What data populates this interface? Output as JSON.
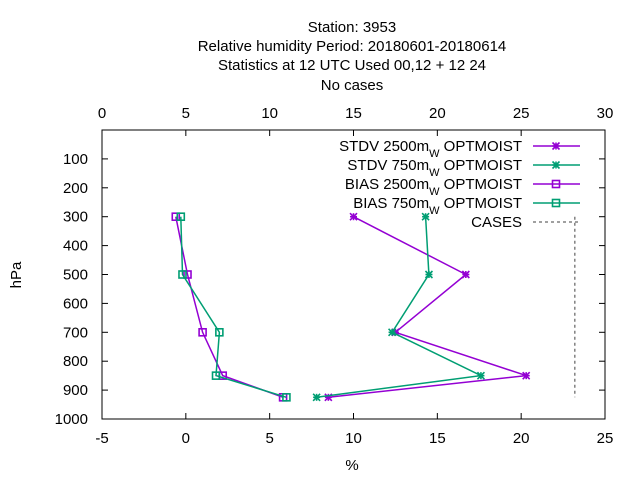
{
  "chart_data": {
    "type": "line",
    "title_lines": [
      "Station:     3953",
      "Relative humidity  Period: 20180601-20180614",
      "Statistics at 12 UTC  Used  00,12  + 12 24",
      "No cases"
    ],
    "xlabel": "%",
    "ylabel": "hPa",
    "xlim": [
      -5,
      25
    ],
    "x2lim": [
      0,
      30
    ],
    "ylim": [
      1000,
      0
    ],
    "x_ticks": [
      -5,
      0,
      5,
      10,
      15,
      20,
      25
    ],
    "x2_ticks": [
      0,
      5,
      10,
      15,
      20,
      25,
      30
    ],
    "y_ticks": [
      100,
      200,
      300,
      400,
      500,
      600,
      700,
      800,
      900,
      1000
    ],
    "legend_position": "top-right",
    "series": [
      {
        "name": "STDV 2500m",
        "name_sub": "W",
        "name_suffix": " OPTMOIST",
        "color": "#9400d3",
        "marker": "x",
        "x": [
          10,
          16.7,
          12.5,
          20.3,
          8.5
        ],
        "y": [
          300,
          500,
          700,
          850,
          925
        ]
      },
      {
        "name": "STDV 750m",
        "name_sub": "W",
        "name_suffix": " OPTMOIST",
        "color": "#009e73",
        "marker": "x",
        "x": [
          14.3,
          14.5,
          12.3,
          17.6,
          7.8
        ],
        "y": [
          300,
          500,
          700,
          850,
          925
        ]
      },
      {
        "name": "BIAS 2500m",
        "name_sub": "W",
        "name_suffix": " OPTMOIST",
        "color": "#9400d3",
        "marker": "square",
        "x": [
          -0.6,
          0.1,
          1.0,
          2.2,
          5.8
        ],
        "y": [
          300,
          500,
          700,
          850,
          925
        ]
      },
      {
        "name": "BIAS 750m",
        "name_sub": "W",
        "name_suffix": " OPTMOIST",
        "color": "#009e73",
        "marker": "square",
        "x": [
          -0.3,
          -0.2,
          2.0,
          1.8,
          6.0
        ],
        "y": [
          300,
          500,
          700,
          850,
          925
        ]
      },
      {
        "name": "CASES",
        "name_sub": "",
        "name_suffix": "",
        "color": "#808080",
        "marker": "none",
        "dashed": true,
        "axis": "x2",
        "x": [
          28.2,
          28.2
        ],
        "y": [
          300,
          925
        ]
      }
    ]
  }
}
